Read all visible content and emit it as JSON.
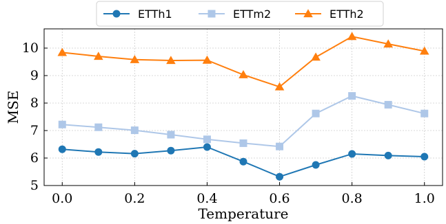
{
  "chart_data": {
    "type": "line",
    "x": [
      0.0,
      0.1,
      0.2,
      0.3,
      0.4,
      0.5,
      0.6,
      0.7,
      0.8,
      0.9,
      1.0
    ],
    "series": [
      {
        "name": "ETTh1",
        "color": "#1f77b4",
        "marker": "circle",
        "values": [
          6.32,
          6.22,
          6.16,
          6.27,
          6.4,
          5.87,
          5.32,
          5.75,
          6.15,
          6.09,
          6.05
        ]
      },
      {
        "name": "ETTm2",
        "color": "#aec7e8",
        "marker": "square",
        "values": [
          7.22,
          7.12,
          7.01,
          6.85,
          6.68,
          6.54,
          6.42,
          7.62,
          8.26,
          7.94,
          7.62
        ]
      },
      {
        "name": "ETTh2",
        "color": "#ff7f0e",
        "marker": "triangle",
        "values": [
          9.84,
          9.7,
          9.58,
          9.55,
          9.56,
          9.03,
          8.59,
          9.67,
          10.42,
          10.15,
          9.89
        ]
      }
    ],
    "xlabel": "Temperature",
    "ylabel": "MSE",
    "xlim": [
      -0.05,
      1.05
    ],
    "ylim": [
      5.0,
      10.7
    ],
    "xticks": [
      "0.0",
      "0.2",
      "0.4",
      "0.6",
      "0.8",
      "1.0"
    ],
    "yticks": [
      "5",
      "6",
      "7",
      "8",
      "9",
      "10"
    ],
    "grid": true,
    "legend": "top-center"
  }
}
